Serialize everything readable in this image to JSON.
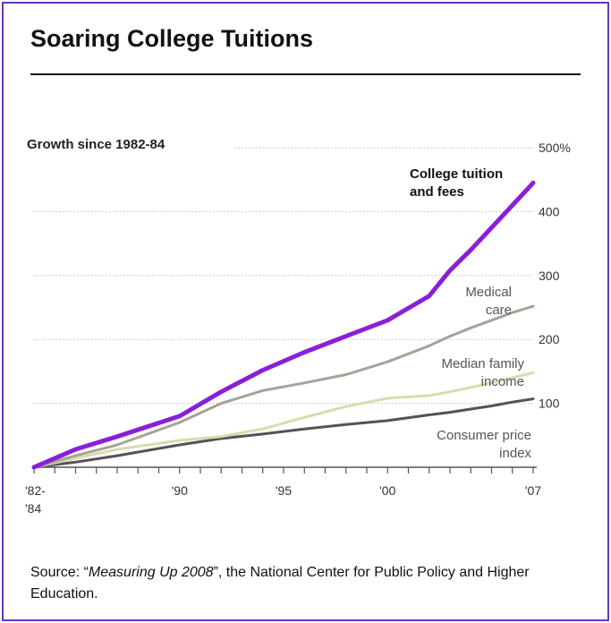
{
  "header": {
    "title": "Soaring College Tuitions"
  },
  "source": {
    "prefix": "Source: “",
    "publication": "Measuring Up 2008",
    "suffix": "”, the National Center for Public Policy and Higher Education."
  },
  "colors": {
    "frame": "#6a34c8",
    "college": "#8a1fd8",
    "medical": "#a9a197",
    "income": "#d8dcae",
    "cpi": "#56505a",
    "grid": "#bdbdbd",
    "text": "#333333"
  },
  "chart_data": {
    "type": "line",
    "title": "Growth since 1982-84",
    "x": [
      1983,
      1985,
      1987,
      1990,
      1992,
      1994,
      1996,
      1998,
      2000,
      2002,
      2003,
      2004,
      2005,
      2006,
      2007
    ],
    "xticks": [
      {
        "value": 1983,
        "label": "'82-",
        "label2": "'84"
      },
      {
        "value": 1990,
        "label": "'90"
      },
      {
        "value": 1995,
        "label": "'95"
      },
      {
        "value": 2000,
        "label": "'00"
      },
      {
        "value": 2007,
        "label": "'07"
      }
    ],
    "ylim": [
      0,
      500
    ],
    "yticks": [
      {
        "value": 100,
        "label": "100"
      },
      {
        "value": 200,
        "label": "200"
      },
      {
        "value": 300,
        "label": "300"
      },
      {
        "value": 400,
        "label": "400"
      },
      {
        "value": 500,
        "label": "500%"
      }
    ],
    "grid": true,
    "series": [
      {
        "name": "College tuition and fees",
        "label_lines": [
          "College tuition",
          "and fees"
        ],
        "label_bold": true,
        "color_key": "college",
        "width": 5,
        "values": [
          0,
          28,
          48,
          80,
          118,
          152,
          180,
          205,
          230,
          268,
          308,
          340,
          375,
          410,
          445
        ]
      },
      {
        "name": "Medical care",
        "label_lines": [
          "Medical",
          "care"
        ],
        "color_key": "medical",
        "width": 3,
        "values": [
          0,
          18,
          35,
          70,
          100,
          120,
          132,
          145,
          165,
          190,
          205,
          218,
          230,
          242,
          252
        ]
      },
      {
        "name": "Median family income",
        "label_lines": [
          "Median family",
          "income"
        ],
        "color_key": "income",
        "width": 3,
        "values": [
          0,
          14,
          28,
          42,
          48,
          60,
          78,
          95,
          108,
          112,
          118,
          125,
          132,
          140,
          148
        ]
      },
      {
        "name": "Consumer price index",
        "label_lines": [
          "Consumer price",
          "index"
        ],
        "color_key": "cpi",
        "width": 3,
        "values": [
          0,
          8,
          18,
          35,
          45,
          52,
          60,
          67,
          73,
          82,
          86,
          91,
          96,
          102,
          107
        ]
      }
    ]
  }
}
